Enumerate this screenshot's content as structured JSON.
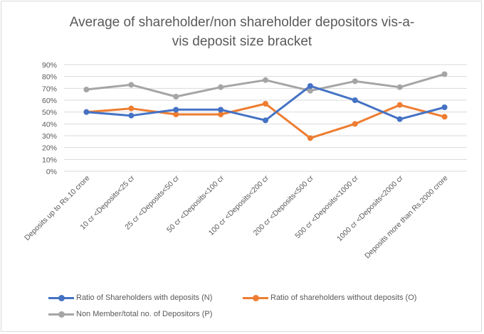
{
  "chart_data": {
    "type": "line",
    "title_line1": "Average of shareholder/non shareholder depositors vis-a-",
    "title_line2": "vis deposit size bracket",
    "categories": [
      "Deposits up to Rs.10 crore",
      "10 cr <Deposits<25 cr",
      "25 cr <Deposits<50 cr",
      "50 cr <Deposits<100 cr",
      "100 cr <Deposits<200 cr",
      "200 cr <Deposits<500 cr",
      "500 cr <Deposits<1000 cr",
      "1000 cr <Deposits<2000 cr",
      "Deposits more than Rs.2000 crore"
    ],
    "series": [
      {
        "name": "Ratio of Shareholders with deposits (N)",
        "color": "#4472c4",
        "values": [
          50,
          47,
          52,
          52,
          43,
          72,
          60,
          44,
          54
        ]
      },
      {
        "name": "Ratio of shareholders without deposits (O)",
        "color": "#ed7d31",
        "values": [
          50,
          53,
          48,
          48,
          57,
          28,
          40,
          56,
          46
        ]
      },
      {
        "name": "Non Member/total no. of Depositors (P)",
        "color": "#a5a5a5",
        "values": [
          69,
          73,
          63,
          71,
          77,
          68,
          76,
          71,
          82
        ]
      }
    ],
    "yticks": [
      "0%",
      "10%",
      "20%",
      "30%",
      "40%",
      "50%",
      "60%",
      "70%",
      "80%",
      "90%"
    ],
    "ylim": [
      0,
      90
    ],
    "grid": true,
    "legend_position": "bottom"
  },
  "colors": {
    "grid": "#d9d9d9",
    "text": "#595959"
  }
}
